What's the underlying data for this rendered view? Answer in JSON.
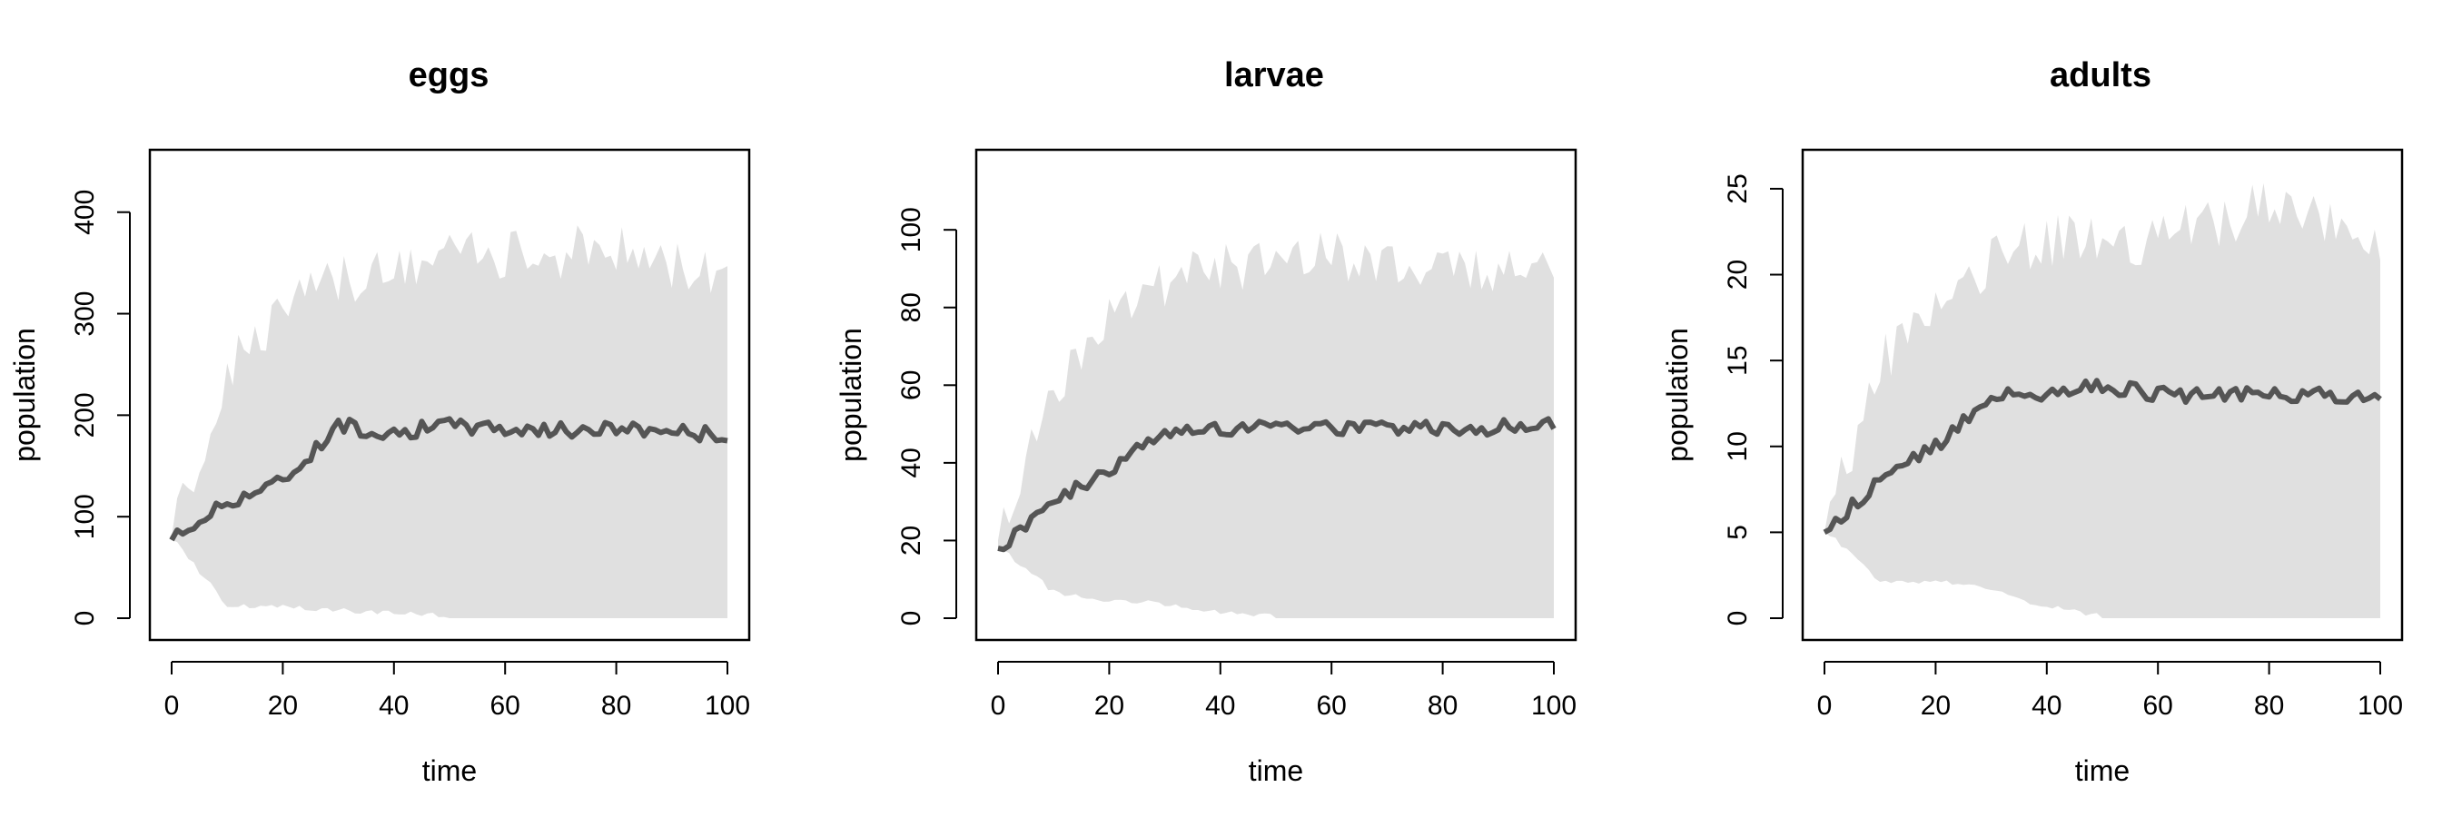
{
  "chart_data": [
    {
      "type": "area",
      "title": "eggs",
      "xlabel": "time",
      "ylabel": "population",
      "xlim": [
        0,
        100
      ],
      "ylim": [
        0,
        440
      ],
      "xticks": [
        0,
        20,
        40,
        60,
        80,
        100
      ],
      "yticks": [
        0,
        100,
        200,
        300,
        400
      ],
      "legend": "none",
      "colors": {
        "band": "#e0e0e0",
        "line": "#555555"
      },
      "x": [
        0,
        10,
        20,
        30,
        40,
        50,
        60,
        70,
        80,
        90,
        100
      ],
      "series": [
        {
          "values": [
            77,
            115,
            135,
            190,
            183,
            190,
            187,
            185,
            187,
            185,
            180
          ]
        },
        {
          "values": [
            80,
            240,
            305,
            330,
            340,
            360,
            355,
            360,
            365,
            350,
            345
          ]
        },
        {
          "values": [
            77,
            10,
            8,
            5,
            2,
            0,
            0,
            0,
            0,
            0,
            0
          ]
        }
      ]
    },
    {
      "type": "area",
      "title": "larvae",
      "xlabel": "time",
      "ylabel": "population",
      "xlim": [
        0,
        100
      ],
      "ylim": [
        0,
        115
      ],
      "xticks": [
        0,
        20,
        40,
        60,
        80,
        100
      ],
      "yticks": [
        0,
        20,
        40,
        60,
        80,
        100
      ],
      "legend": "none",
      "colors": {
        "band": "#e0e0e0",
        "line": "#555555"
      },
      "x": [
        0,
        10,
        20,
        30,
        40,
        50,
        60,
        70,
        80,
        90,
        100
      ],
      "series": [
        {
          "values": [
            18,
            30,
            38,
            48,
            49,
            50,
            49,
            49,
            49,
            49,
            50
          ]
        },
        {
          "values": [
            20,
            60,
            80,
            87,
            90,
            92,
            93,
            92,
            92,
            90,
            90
          ]
        },
        {
          "values": [
            18,
            6,
            4,
            3,
            1,
            0,
            0,
            0,
            0,
            0,
            0
          ]
        }
      ]
    },
    {
      "type": "area",
      "title": "adults",
      "xlabel": "time",
      "ylabel": "population",
      "xlim": [
        0,
        100
      ],
      "ylim": [
        0,
        26
      ],
      "xticks": [
        0,
        20,
        40,
        60,
        80,
        100
      ],
      "yticks": [
        0,
        5,
        10,
        15,
        20,
        25
      ],
      "legend": "none",
      "colors": {
        "band": "#e0e0e0",
        "line": "#555555"
      },
      "x": [
        0,
        10,
        20,
        30,
        40,
        50,
        60,
        70,
        80,
        90,
        100
      ],
      "series": [
        {
          "values": [
            5,
            8,
            10,
            13,
            13,
            13.5,
            13,
            13,
            13,
            13,
            13
          ]
        },
        {
          "values": [
            5,
            15,
            18,
            21,
            22,
            22,
            22,
            23,
            24,
            23,
            22
          ]
        },
        {
          "values": [
            5,
            2,
            2,
            1.5,
            0.5,
            0,
            0,
            0,
            0,
            0,
            0
          ]
        }
      ]
    }
  ]
}
